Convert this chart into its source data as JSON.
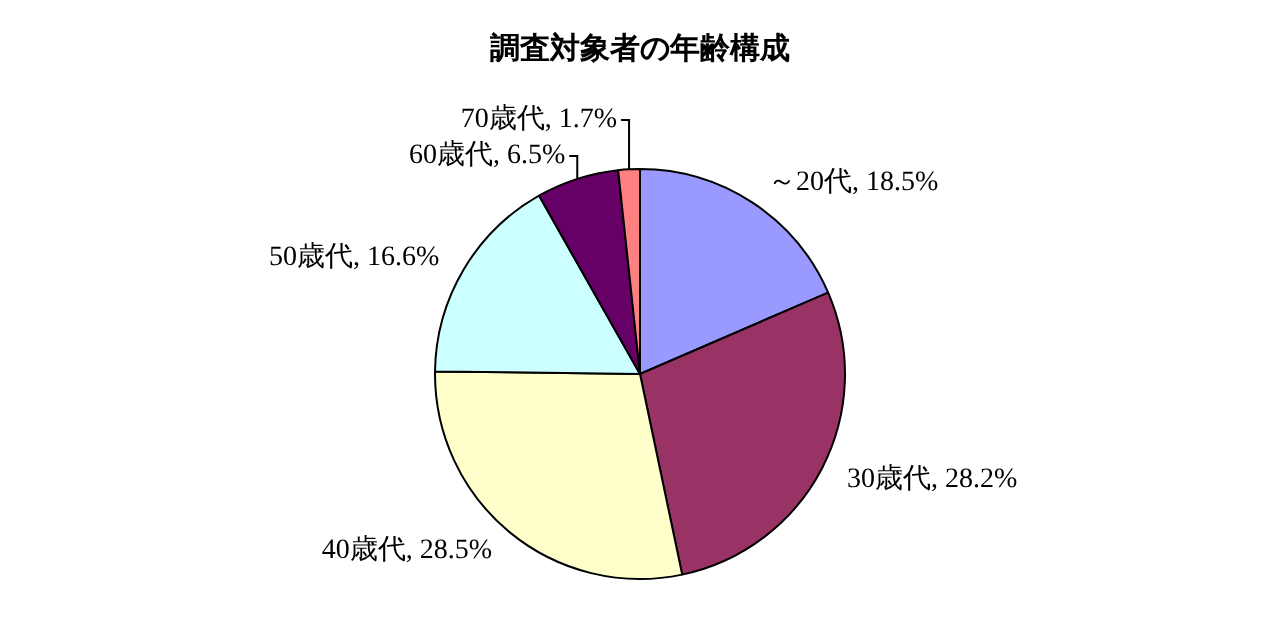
{
  "chart_data": {
    "type": "pie",
    "title": "調査対象者の年齢構成",
    "categories": [
      "～20代",
      "30歳代",
      "40歳代",
      "50歳代",
      "60歳代",
      "70歳代"
    ],
    "values": [
      18.5,
      28.2,
      28.5,
      16.6,
      6.5,
      1.7
    ],
    "colors": [
      "#9999ff",
      "#993366",
      "#ffffcc",
      "#ccffff",
      "#660066",
      "#ff8080"
    ],
    "value_labels": [
      "18.5%",
      "28.2%",
      "28.5%",
      "16.6%",
      "6.5%",
      "1.7%"
    ],
    "legend": false
  }
}
